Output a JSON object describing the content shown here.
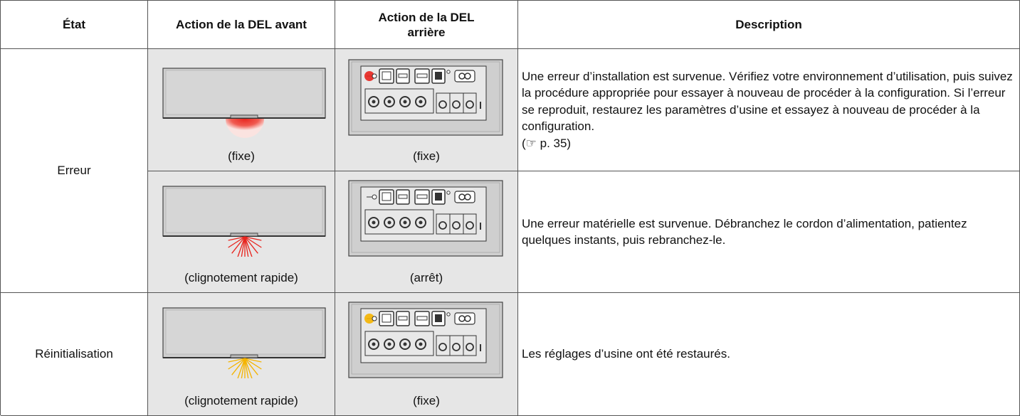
{
  "table": {
    "header": [
      "État",
      "Action de la DEL avant",
      "Action de la DEL arrière",
      "Description"
    ],
    "groups": [
      {
        "state": "Erreur",
        "rows": [
          {
            "front": "(fixe)",
            "rear": "(fixe)",
            "description": "Une erreur d’installation est survenue. Vérifiez votre environnement d’utilisation, puis suivez la procédure appropriée pour essayer à nouveau de procéder à la configuration. Si l’erreur se reproduit, restaurez les paramètres d’usine et essayez à nouveau de procéder à la configuration.",
            "reference": "(☞ p. 35)"
          },
          {
            "front": "(clignotement rapide)",
            "rear": "(arrêt)",
            "description": "Une erreur matérielle est survenue. Débranchez le cordon d’alimentation, patientez quelques instants, puis rebranchez-le."
          }
        ]
      },
      {
        "state": "Réinitialisation",
        "rows": [
          {
            "front": "(clignotement rapide)",
            "rear": "(fixe)",
            "description": "Les réglages d’usine ont été restaurés."
          }
        ]
      }
    ]
  }
}
